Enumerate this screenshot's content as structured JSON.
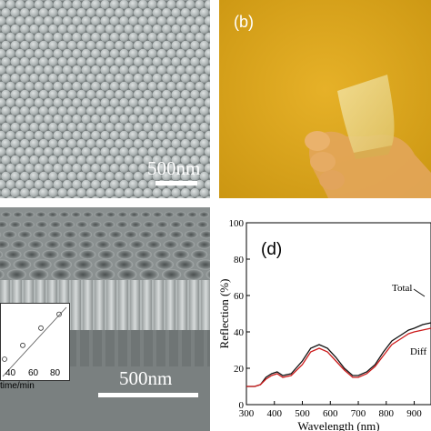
{
  "panel_a": {
    "scale_label": "500nm"
  },
  "panel_b": {
    "label": "(b)"
  },
  "panel_c": {
    "scale_label": "500nm",
    "inset": {
      "xlabel": "time/min",
      "ticks": [
        "40",
        "60",
        "80"
      ],
      "points_y": [
        0.25,
        0.45,
        0.7,
        0.9
      ]
    }
  },
  "panel_d": {
    "label": "(d)",
    "xlabel": "Wavelength (nm)",
    "ylabel": "Reflection (%)",
    "x_ticks": [
      "300",
      "400",
      "500",
      "600",
      "700",
      "800",
      "900"
    ],
    "y_ticks": [
      "0",
      "20",
      "40",
      "60",
      "80",
      "100"
    ],
    "total_label": "Total",
    "diffuse_label": "Diff"
  },
  "chart_data": {
    "type": "line",
    "xlabel": "Wavelength (nm)",
    "ylabel": "Reflection (%)",
    "xlim": [
      300,
      960
    ],
    "ylim": [
      0,
      100
    ],
    "series": [
      {
        "name": "Total",
        "color": "#111111",
        "x": [
          300,
          330,
          350,
          370,
          390,
          410,
          430,
          460,
          500,
          530,
          560,
          590,
          620,
          650,
          680,
          700,
          730,
          760,
          790,
          820,
          850,
          880,
          900,
          930,
          960
        ],
        "y": [
          10,
          10,
          11,
          15,
          17,
          18,
          16,
          17,
          24,
          31,
          33,
          31,
          26,
          20,
          16,
          16,
          18,
          22,
          29,
          35,
          38,
          41,
          42,
          44,
          45
        ]
      },
      {
        "name": "Diff",
        "color": "#cc1a1a",
        "x": [
          300,
          330,
          350,
          370,
          390,
          410,
          430,
          460,
          500,
          530,
          560,
          590,
          620,
          650,
          680,
          700,
          730,
          760,
          790,
          820,
          850,
          880,
          900,
          930,
          960
        ],
        "y": [
          10,
          10,
          11,
          14,
          16,
          17,
          15,
          16,
          22,
          29,
          31,
          29,
          24,
          19,
          15,
          15,
          17,
          21,
          27,
          33,
          36,
          39,
          40,
          41,
          42
        ]
      }
    ]
  }
}
